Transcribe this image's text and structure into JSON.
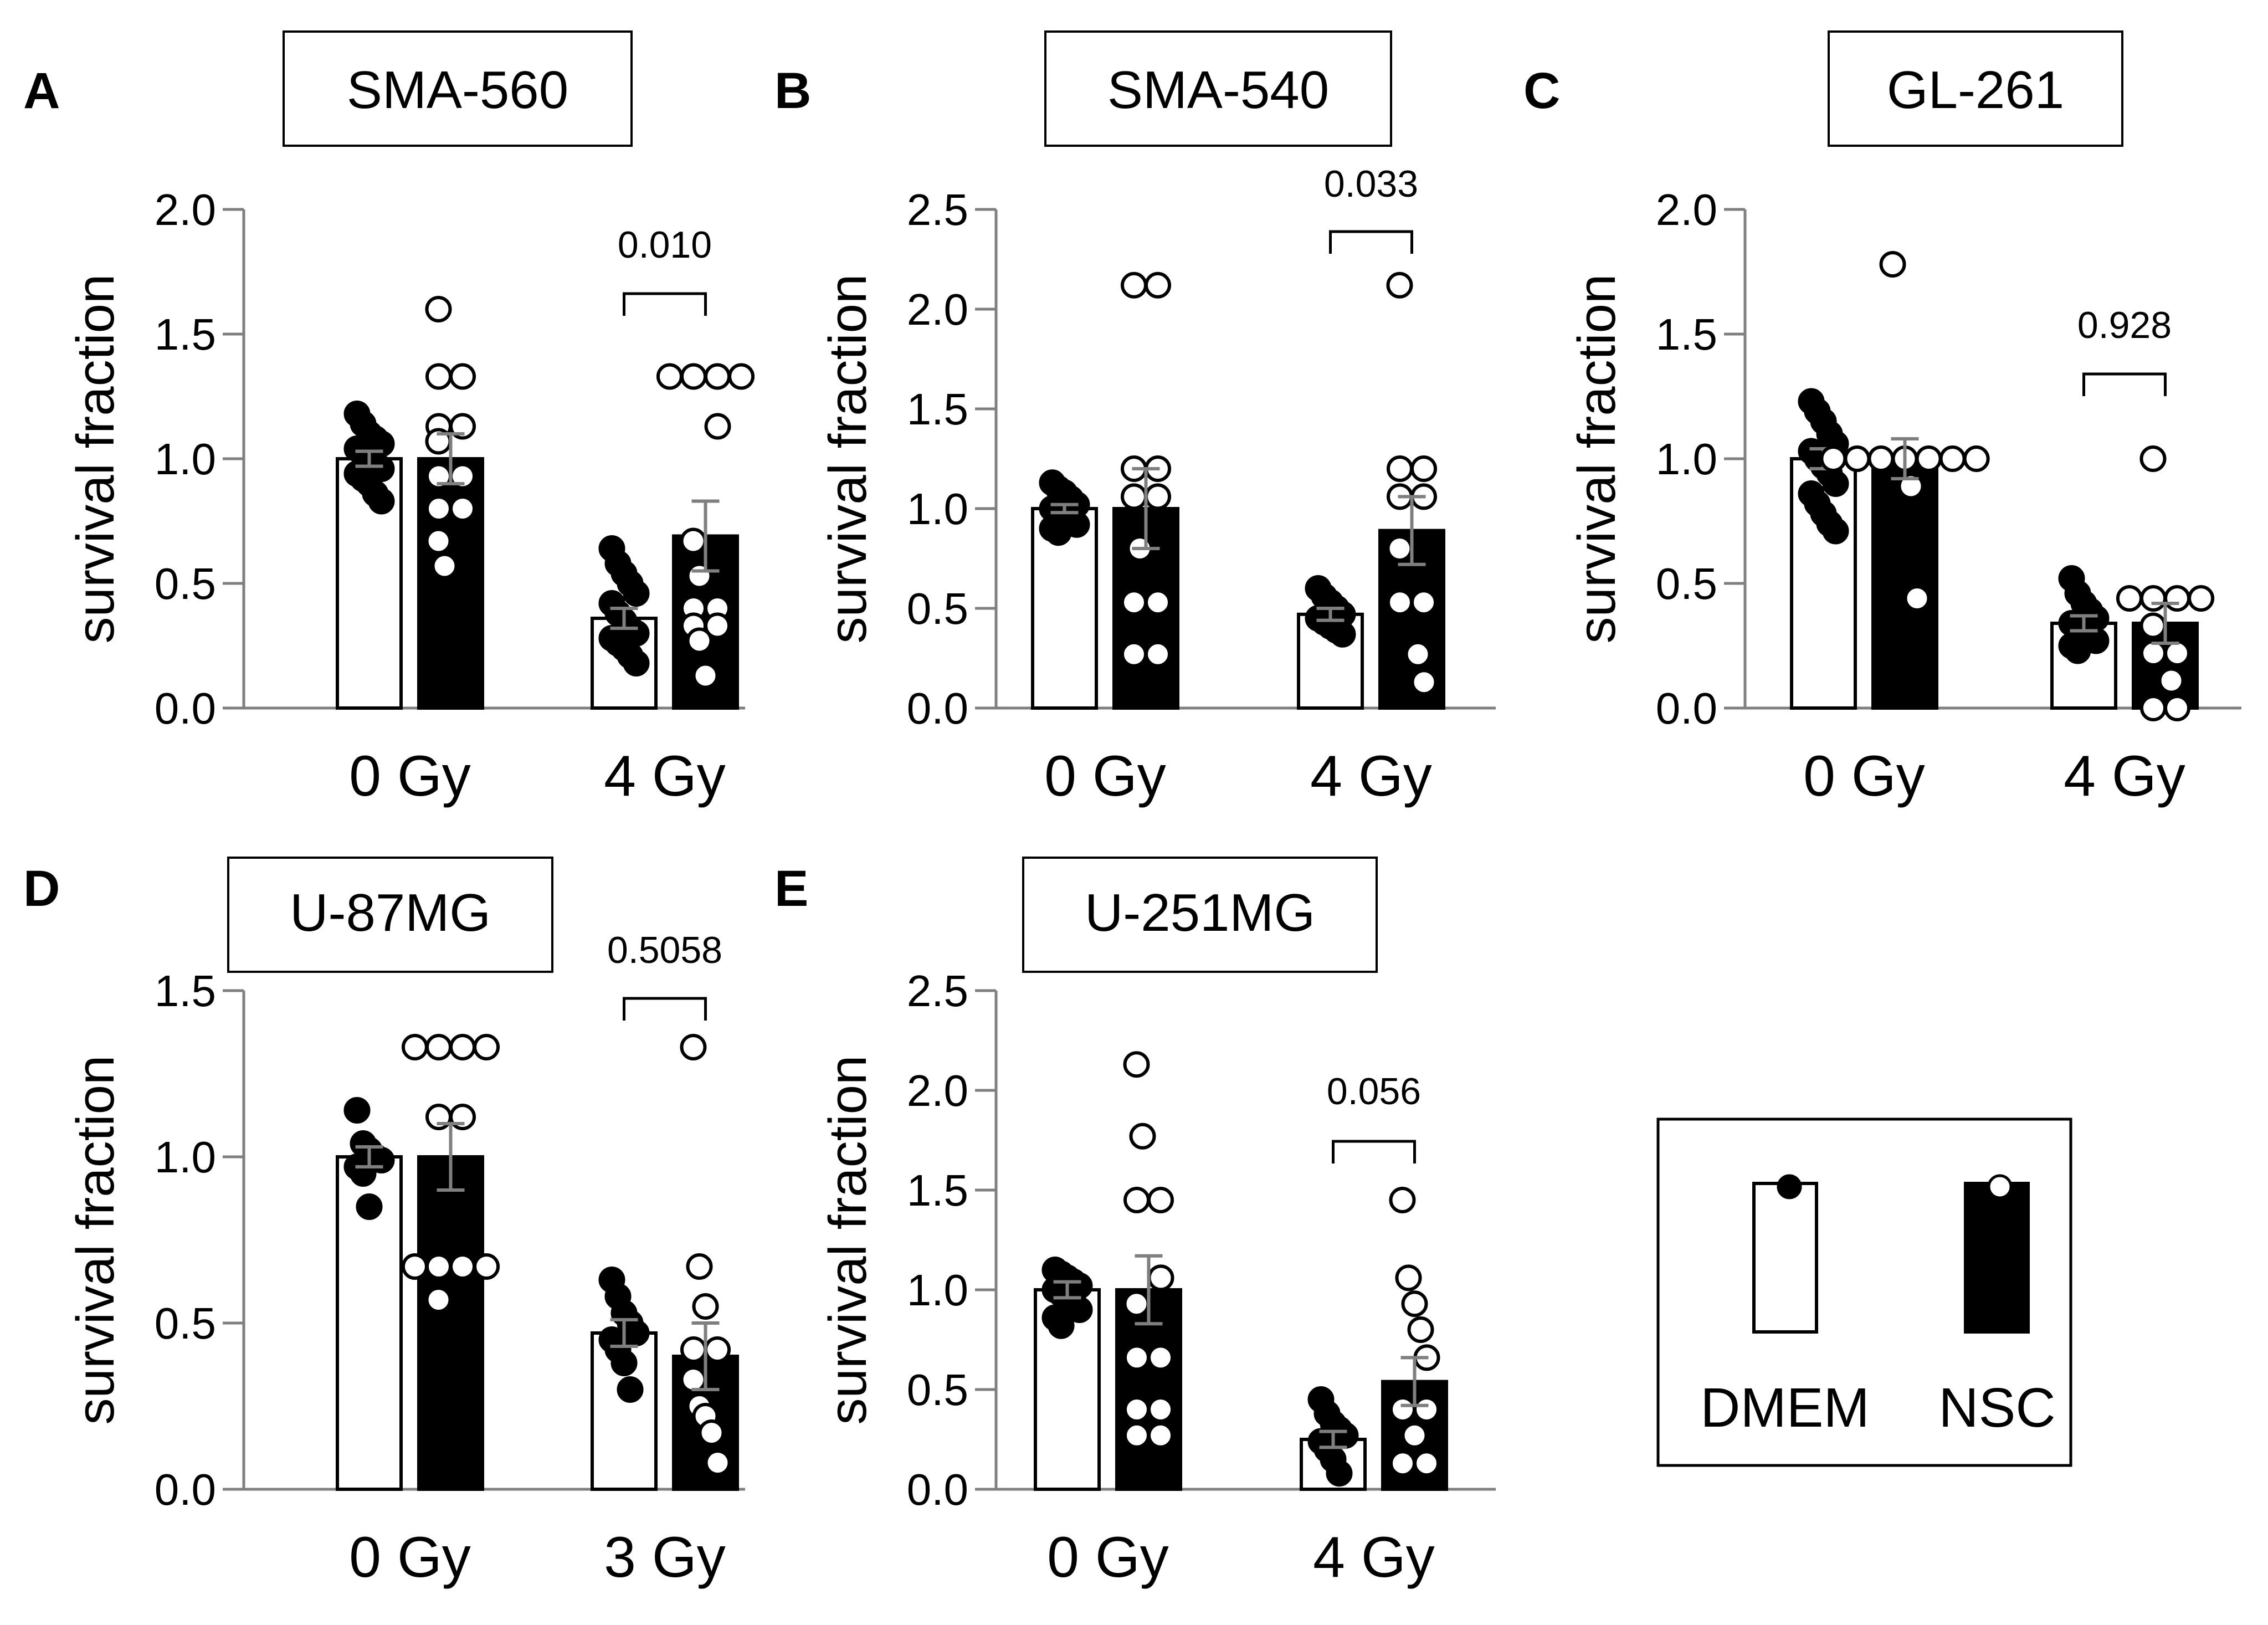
{
  "figure": {
    "legend_labels": [
      "DMEM",
      "NSC"
    ]
  },
  "chart_data": [
    {
      "type": "bar",
      "panel": "A",
      "title": "SMA-560",
      "ylabel": "survival fraction",
      "ylim": [
        0,
        2.0
      ],
      "yticks": [
        "0.0",
        "0.5",
        "1.0",
        "1.5",
        "2.0"
      ],
      "categories": [
        "0 Gy",
        "4 Gy"
      ],
      "series": [
        {
          "name": "DMEM",
          "values": [
            1.0,
            0.36
          ],
          "errors": [
            0.03,
            0.04
          ],
          "points": [
            [
              1.18,
              1.14,
              1.1,
              1.08,
              1.06,
              1.04,
              1.02,
              1.0,
              0.98,
              0.96,
              0.94,
              0.92,
              0.9,
              0.86,
              0.83
            ],
            [
              0.64,
              0.58,
              0.54,
              0.5,
              0.46,
              0.42,
              0.38,
              0.35,
              0.32,
              0.3,
              0.28,
              0.26,
              0.24,
              0.21,
              0.18
            ]
          ]
        },
        {
          "name": "NSC",
          "values": [
            1.0,
            0.69
          ],
          "errors": [
            0.1,
            0.14
          ],
          "points": [
            [
              1.6,
              1.33,
              1.33,
              1.13,
              1.13,
              1.07,
              0.93,
              0.93,
              0.8,
              0.8,
              0.67,
              0.57
            ],
            [
              1.33,
              1.33,
              1.33,
              1.33,
              1.13,
              0.67,
              0.53,
              0.4,
              0.4,
              0.33,
              0.33,
              0.27,
              0.13
            ]
          ]
        }
      ],
      "annotation": {
        "text": "0.010",
        "category": "4 Gy"
      }
    },
    {
      "type": "bar",
      "panel": "B",
      "title": "SMA-540",
      "ylabel": "survival fraction",
      "ylim": [
        0,
        2.5
      ],
      "yticks": [
        "0.0",
        "0.5",
        "1.0",
        "1.5",
        "2.0",
        "2.5"
      ],
      "categories": [
        "0 Gy",
        "4 Gy"
      ],
      "series": [
        {
          "name": "DMEM",
          "values": [
            1.0,
            0.47
          ],
          "errors": [
            0.02,
            0.03
          ],
          "points": [
            [
              1.13,
              1.1,
              1.08,
              1.05,
              1.02,
              1.0,
              0.98,
              0.96,
              0.94,
              0.92,
              0.9,
              0.88
            ],
            [
              0.6,
              0.56,
              0.53,
              0.5,
              0.47,
              0.45,
              0.43,
              0.41,
              0.39,
              0.37
            ]
          ]
        },
        {
          "name": "NSC",
          "values": [
            1.0,
            0.89
          ],
          "errors": [
            0.2,
            0.17
          ],
          "points": [
            [
              2.12,
              2.12,
              1.2,
              1.2,
              1.06,
              1.06,
              0.8,
              0.53,
              0.53,
              0.27,
              0.27
            ],
            [
              2.12,
              1.2,
              1.2,
              1.06,
              1.06,
              0.8,
              0.53,
              0.53,
              0.27,
              0.13
            ]
          ]
        }
      ],
      "annotation": {
        "text": "0.033",
        "category": "4 Gy"
      }
    },
    {
      "type": "bar",
      "panel": "C",
      "title": "GL-261",
      "ylabel": "survival fraction",
      "ylim": [
        0,
        2.0
      ],
      "yticks": [
        "0.0",
        "0.5",
        "1.0",
        "1.5",
        "2.0"
      ],
      "categories": [
        "0 Gy",
        "4 Gy"
      ],
      "series": [
        {
          "name": "DMEM",
          "values": [
            1.0,
            0.34
          ],
          "errors": [
            0.04,
            0.03
          ],
          "points": [
            [
              1.23,
              1.19,
              1.15,
              1.1,
              1.06,
              1.03,
              1.0,
              0.97,
              0.94,
              0.9,
              0.86,
              0.82,
              0.78,
              0.74,
              0.71
            ],
            [
              0.52,
              0.46,
              0.42,
              0.39,
              0.36,
              0.34,
              0.32,
              0.3,
              0.28,
              0.27,
              0.25,
              0.23
            ]
          ]
        },
        {
          "name": "NSC",
          "values": [
            1.0,
            0.34
          ],
          "errors": [
            0.08,
            0.08
          ],
          "points": [
            [
              1.78,
              1.0,
              1.0,
              1.0,
              1.0,
              1.0,
              1.0,
              1.0,
              0.89,
              0.44
            ],
            [
              1.0,
              0.44,
              0.44,
              0.44,
              0.44,
              0.33,
              0.22,
              0.22,
              0.11,
              0.0,
              0.0
            ]
          ]
        }
      ],
      "annotation": {
        "text": "0.928",
        "category": "4 Gy"
      }
    },
    {
      "type": "bar",
      "panel": "D",
      "title": "U-87MG",
      "ylabel": "survival fraction",
      "ylim": [
        0,
        1.5
      ],
      "yticks": [
        "0.0",
        "0.5",
        "1.0",
        "1.5"
      ],
      "categories": [
        "0 Gy",
        "3 Gy"
      ],
      "series": [
        {
          "name": "DMEM",
          "values": [
            1.0,
            0.47
          ],
          "errors": [
            0.03,
            0.04
          ],
          "points": [
            [
              1.14,
              1.04,
              1.02,
              1.0,
              0.99,
              0.97,
              0.95,
              0.85
            ],
            [
              0.63,
              0.58,
              0.53,
              0.5,
              0.47,
              0.45,
              0.42,
              0.38,
              0.3
            ]
          ]
        },
        {
          "name": "NSC",
          "values": [
            1.0,
            0.4
          ],
          "errors": [
            0.1,
            0.1
          ],
          "points": [
            [
              1.33,
              1.33,
              1.33,
              1.33,
              1.12,
              1.12,
              0.67,
              0.67,
              0.67,
              0.67,
              0.57
            ],
            [
              1.33,
              0.67,
              0.55,
              0.42,
              0.42,
              0.33,
              0.25,
              0.22,
              0.17,
              0.08
            ]
          ]
        }
      ],
      "annotation": {
        "text": "0.5058",
        "category": "3 Gy"
      }
    },
    {
      "type": "bar",
      "panel": "E",
      "title": "U-251MG",
      "ylabel": "survival fraction",
      "ylim": [
        0,
        2.5
      ],
      "yticks": [
        "0.0",
        "0.5",
        "1.0",
        "1.5",
        "2.0",
        "2.5"
      ],
      "categories": [
        "0 Gy",
        "4 Gy"
      ],
      "series": [
        {
          "name": "DMEM",
          "values": [
            1.0,
            0.25
          ],
          "errors": [
            0.04,
            0.04
          ],
          "points": [
            [
              1.1,
              1.08,
              1.06,
              1.04,
              1.02,
              1.0,
              0.98,
              0.96,
              0.94,
              0.9,
              0.86,
              0.82
            ],
            [
              0.45,
              0.38,
              0.33,
              0.3,
              0.27,
              0.24,
              0.2,
              0.15,
              0.08
            ]
          ]
        },
        {
          "name": "NSC",
          "values": [
            1.0,
            0.54
          ],
          "errors": [
            0.17,
            0.12
          ],
          "points": [
            [
              2.13,
              1.77,
              1.45,
              1.45,
              1.06,
              0.93,
              0.66,
              0.66,
              0.4,
              0.4,
              0.27,
              0.27
            ],
            [
              1.45,
              1.06,
              0.93,
              0.8,
              0.66,
              0.4,
              0.4,
              0.27,
              0.13,
              0.13
            ]
          ]
        }
      ],
      "annotation": {
        "text": "0.056",
        "category": "4 Gy"
      }
    }
  ]
}
